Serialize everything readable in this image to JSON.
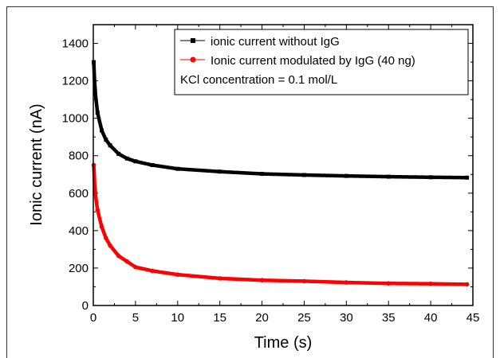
{
  "chart_data": {
    "type": "line",
    "xlabel": "Time (s)",
    "ylabel": "Ionic current (nA)",
    "xlim": [
      0,
      45
    ],
    "ylim": [
      0,
      1500
    ],
    "x_ticks": [
      "0",
      "5",
      "10",
      "15",
      "20",
      "25",
      "30",
      "35",
      "40",
      "45"
    ],
    "y_ticks": [
      "0",
      "200",
      "400",
      "600",
      "800",
      "1000",
      "1200",
      "1400"
    ],
    "legend_position": "top-right",
    "annotation": "KCl concentration = 0.1 mol/L",
    "series": [
      {
        "name": "ionic current without IgG",
        "color": "#000000",
        "marker": "square",
        "x": [
          0.05,
          0.2,
          0.5,
          1,
          1.5,
          2,
          3,
          4,
          5,
          7,
          10,
          15,
          20,
          25,
          30,
          35,
          40,
          44.3
        ],
        "values": [
          1300,
          1150,
          1030,
          935,
          885,
          855,
          810,
          785,
          770,
          750,
          730,
          715,
          703,
          697,
          692,
          688,
          685,
          683
        ]
      },
      {
        "name": "Ionic current modulated by IgG (40 ng)",
        "color": "#ff0000",
        "marker": "circle",
        "x": [
          0.05,
          0.2,
          0.5,
          1,
          1.5,
          2,
          3,
          4,
          5,
          7,
          10,
          15,
          20,
          25,
          30,
          35,
          40,
          44.3
        ],
        "values": [
          750,
          610,
          510,
          420,
          360,
          320,
          265,
          235,
          205,
          185,
          165,
          145,
          135,
          130,
          123,
          118,
          116,
          113
        ]
      }
    ]
  }
}
